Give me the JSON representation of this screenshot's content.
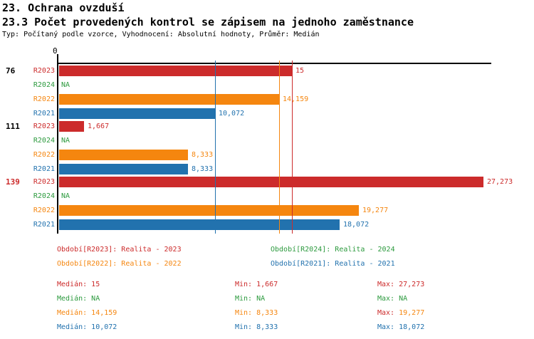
{
  "header": {
    "title": "23. Ochrana ovzduší",
    "subtitle": "23.3 Počet provedených kontrol se zápisem na jednoho zaměstnance",
    "meta": "Typ: Počítaný podle vzorce, Vyhodnocení: Absolutní hodnoty, Průměr: Medián"
  },
  "colors": {
    "r2023": "#cc2b2b",
    "r2024": "#2c9a3e",
    "r2022": "#f5860f",
    "r2021": "#2272ae",
    "axis": "#000000",
    "group_label_default": "#000000"
  },
  "chart_data": {
    "type": "bar",
    "orientation": "horizontal",
    "x_axis": {
      "origin_label": "0",
      "xlim": [
        0,
        27.8
      ],
      "gridlines": false
    },
    "series": [
      "R2023",
      "R2024",
      "R2022",
      "R2021"
    ],
    "groups": [
      {
        "label": "76",
        "label_color_key": "group_label_default",
        "bars": [
          {
            "series": "R2023",
            "color_key": "r2023",
            "value": 15,
            "display": "15"
          },
          {
            "series": "R2024",
            "color_key": "r2024",
            "value": null,
            "display": "NA"
          },
          {
            "series": "R2022",
            "color_key": "r2022",
            "value": 14.159,
            "display": "14,159"
          },
          {
            "series": "R2021",
            "color_key": "r2021",
            "value": 10.072,
            "display": "10,072"
          }
        ]
      },
      {
        "label": "111",
        "label_color_key": "group_label_default",
        "bars": [
          {
            "series": "R2023",
            "color_key": "r2023",
            "value": 1.667,
            "display": "1,667"
          },
          {
            "series": "R2024",
            "color_key": "r2024",
            "value": null,
            "display": "NA"
          },
          {
            "series": "R2022",
            "color_key": "r2022",
            "value": 8.333,
            "display": "8,333"
          },
          {
            "series": "R2021",
            "color_key": "r2021",
            "value": 8.333,
            "display": "8,333"
          }
        ]
      },
      {
        "label": "139",
        "label_color_key": "r2023",
        "bars": [
          {
            "series": "R2023",
            "color_key": "r2023",
            "value": 27.273,
            "display": "27,273"
          },
          {
            "series": "R2024",
            "color_key": "r2024",
            "value": null,
            "display": "NA"
          },
          {
            "series": "R2022",
            "color_key": "r2022",
            "value": 19.277,
            "display": "19,277"
          },
          {
            "series": "R2021",
            "color_key": "r2021",
            "value": 18.072,
            "display": "18,072"
          }
        ]
      }
    ],
    "median_lines": [
      {
        "series": "R2023",
        "color_key": "r2023",
        "value": 15
      },
      {
        "series": "R2022",
        "color_key": "r2022",
        "value": 14.159
      },
      {
        "series": "R2021",
        "color_key": "r2021",
        "value": 10.072
      }
    ]
  },
  "legend": {
    "items": [
      {
        "series": "R2023",
        "color_key": "r2023",
        "text": "Období[R2023]: Realita - 2023"
      },
      {
        "series": "R2024",
        "color_key": "r2024",
        "text": "Období[R2024]: Realita - 2024"
      },
      {
        "series": "R2022",
        "color_key": "r2022",
        "text": "Období[R2022]: Realita - 2022"
      },
      {
        "series": "R2021",
        "color_key": "r2021",
        "text": "Období[R2021]: Realita - 2021"
      }
    ]
  },
  "stats": {
    "rows": [
      {
        "series": "R2023",
        "cells": [
          {
            "label": "Medián:",
            "value": "15",
            "label_color_key": "r2023",
            "value_color_key": "r2023"
          },
          {
            "label": "Min:",
            "value": "1,667",
            "label_color_key": "r2023",
            "value_color_key": "r2023"
          },
          {
            "label": "Max:",
            "value": "27,273",
            "label_color_key": "r2023",
            "value_color_key": "r2023"
          }
        ]
      },
      {
        "series": "R2024",
        "cells": [
          {
            "label": "Medián:",
            "value": "NA",
            "label_color_key": "r2024",
            "value_color_key": "r2024"
          },
          {
            "label": "Min:",
            "value": "NA",
            "label_color_key": "r2024",
            "value_color_key": "r2024"
          },
          {
            "label": "Max:",
            "value": "NA",
            "label_color_key": "r2024",
            "value_color_key": "r2024"
          }
        ]
      },
      {
        "series": "R2022",
        "cells": [
          {
            "label": "Medián:",
            "value": "14,159",
            "label_color_key": "r2022",
            "value_color_key": "r2022"
          },
          {
            "label": "Min:",
            "value": "8,333",
            "label_color_key": "r2022",
            "value_color_key": "r2022"
          },
          {
            "label": "Max:",
            "value": "19,277",
            "label_color_key": "r2023",
            "value_color_key": "r2022"
          }
        ]
      },
      {
        "series": "R2021",
        "cells": [
          {
            "label": "Medián:",
            "value": "10,072",
            "label_color_key": "r2021",
            "value_color_key": "r2021"
          },
          {
            "label": "Min:",
            "value": "8,333",
            "label_color_key": "r2021",
            "value_color_key": "r2021"
          },
          {
            "label": "Max:",
            "value": "18,072",
            "label_color_key": "r2021",
            "value_color_key": "r2021"
          }
        ]
      }
    ]
  }
}
